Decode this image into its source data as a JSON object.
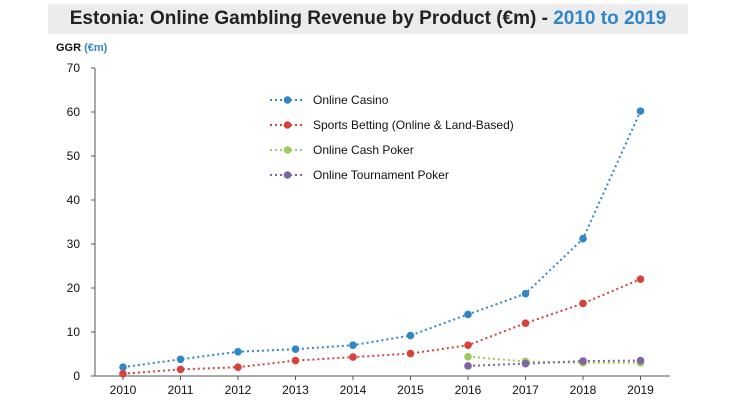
{
  "chart_data": {
    "type": "line",
    "title": "Estonia: Online Gambling Revenue by Product (€m) - ",
    "title_accent": "2010 to 2019",
    "ylabel": "GGR",
    "ylabel_unit": "(€m)",
    "xlabel": "",
    "ylim": [
      0,
      70
    ],
    "yticks": [
      0,
      10,
      20,
      30,
      40,
      50,
      60,
      70
    ],
    "categories": [
      "2010",
      "2011",
      "2012",
      "2013",
      "2014",
      "2015",
      "2016",
      "2017",
      "2018",
      "2019"
    ],
    "legend_position": "top-center",
    "grid": false,
    "series": [
      {
        "name": "Online Casino",
        "color": "#2f86c9",
        "values": [
          2.0,
          3.8,
          5.5,
          6.1,
          7.0,
          9.2,
          14.0,
          18.7,
          31.2,
          60.2
        ]
      },
      {
        "name": "Sports Betting (Online & Land-Based)",
        "color": "#d9413b",
        "values": [
          0.5,
          1.5,
          2.0,
          3.5,
          4.3,
          5.1,
          7.0,
          12.0,
          16.5,
          22.0
        ]
      },
      {
        "name": "Online Cash Poker",
        "color": "#9bcb5a",
        "values": [
          null,
          null,
          null,
          null,
          null,
          null,
          4.4,
          3.3,
          3.0,
          3.0
        ]
      },
      {
        "name": "Online Tournament Poker",
        "color": "#8064a2",
        "values": [
          null,
          null,
          null,
          null,
          null,
          null,
          2.3,
          2.8,
          3.4,
          3.5
        ]
      }
    ]
  }
}
